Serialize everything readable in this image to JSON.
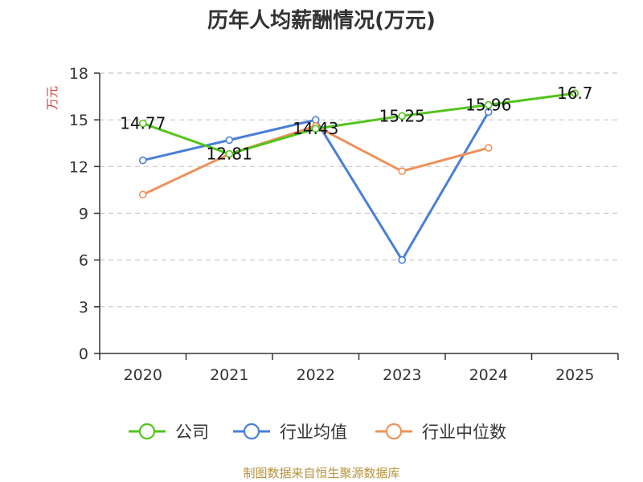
{
  "chart_data": {
    "type": "line",
    "title": "历年人均薪酬情况(万元)",
    "ylabel": "万元",
    "xlabel": "",
    "categories": [
      "2020",
      "2021",
      "2022",
      "2023",
      "2024",
      "2025"
    ],
    "ylim": [
      0,
      18
    ],
    "yticks": [
      0,
      3,
      6,
      9,
      12,
      15,
      18
    ],
    "grid": true,
    "legend_position": "bottom",
    "series": [
      {
        "name": "公司",
        "color": "#52c41a",
        "values": [
          14.77,
          12.81,
          14.43,
          15.25,
          15.96,
          16.7
        ],
        "labels": [
          "14.77",
          "12.81",
          "14.43",
          "15.25",
          "15.96",
          "16.7"
        ]
      },
      {
        "name": "行业均值",
        "color": "#4a7fd8",
        "values": [
          12.4,
          13.7,
          15.0,
          6.0,
          15.5,
          null
        ]
      },
      {
        "name": "行业中位数",
        "color": "#f0905a",
        "values": [
          10.2,
          12.8,
          14.6,
          11.7,
          13.2,
          null
        ]
      }
    ]
  },
  "source": "制图数据来自恒生聚源数据库"
}
